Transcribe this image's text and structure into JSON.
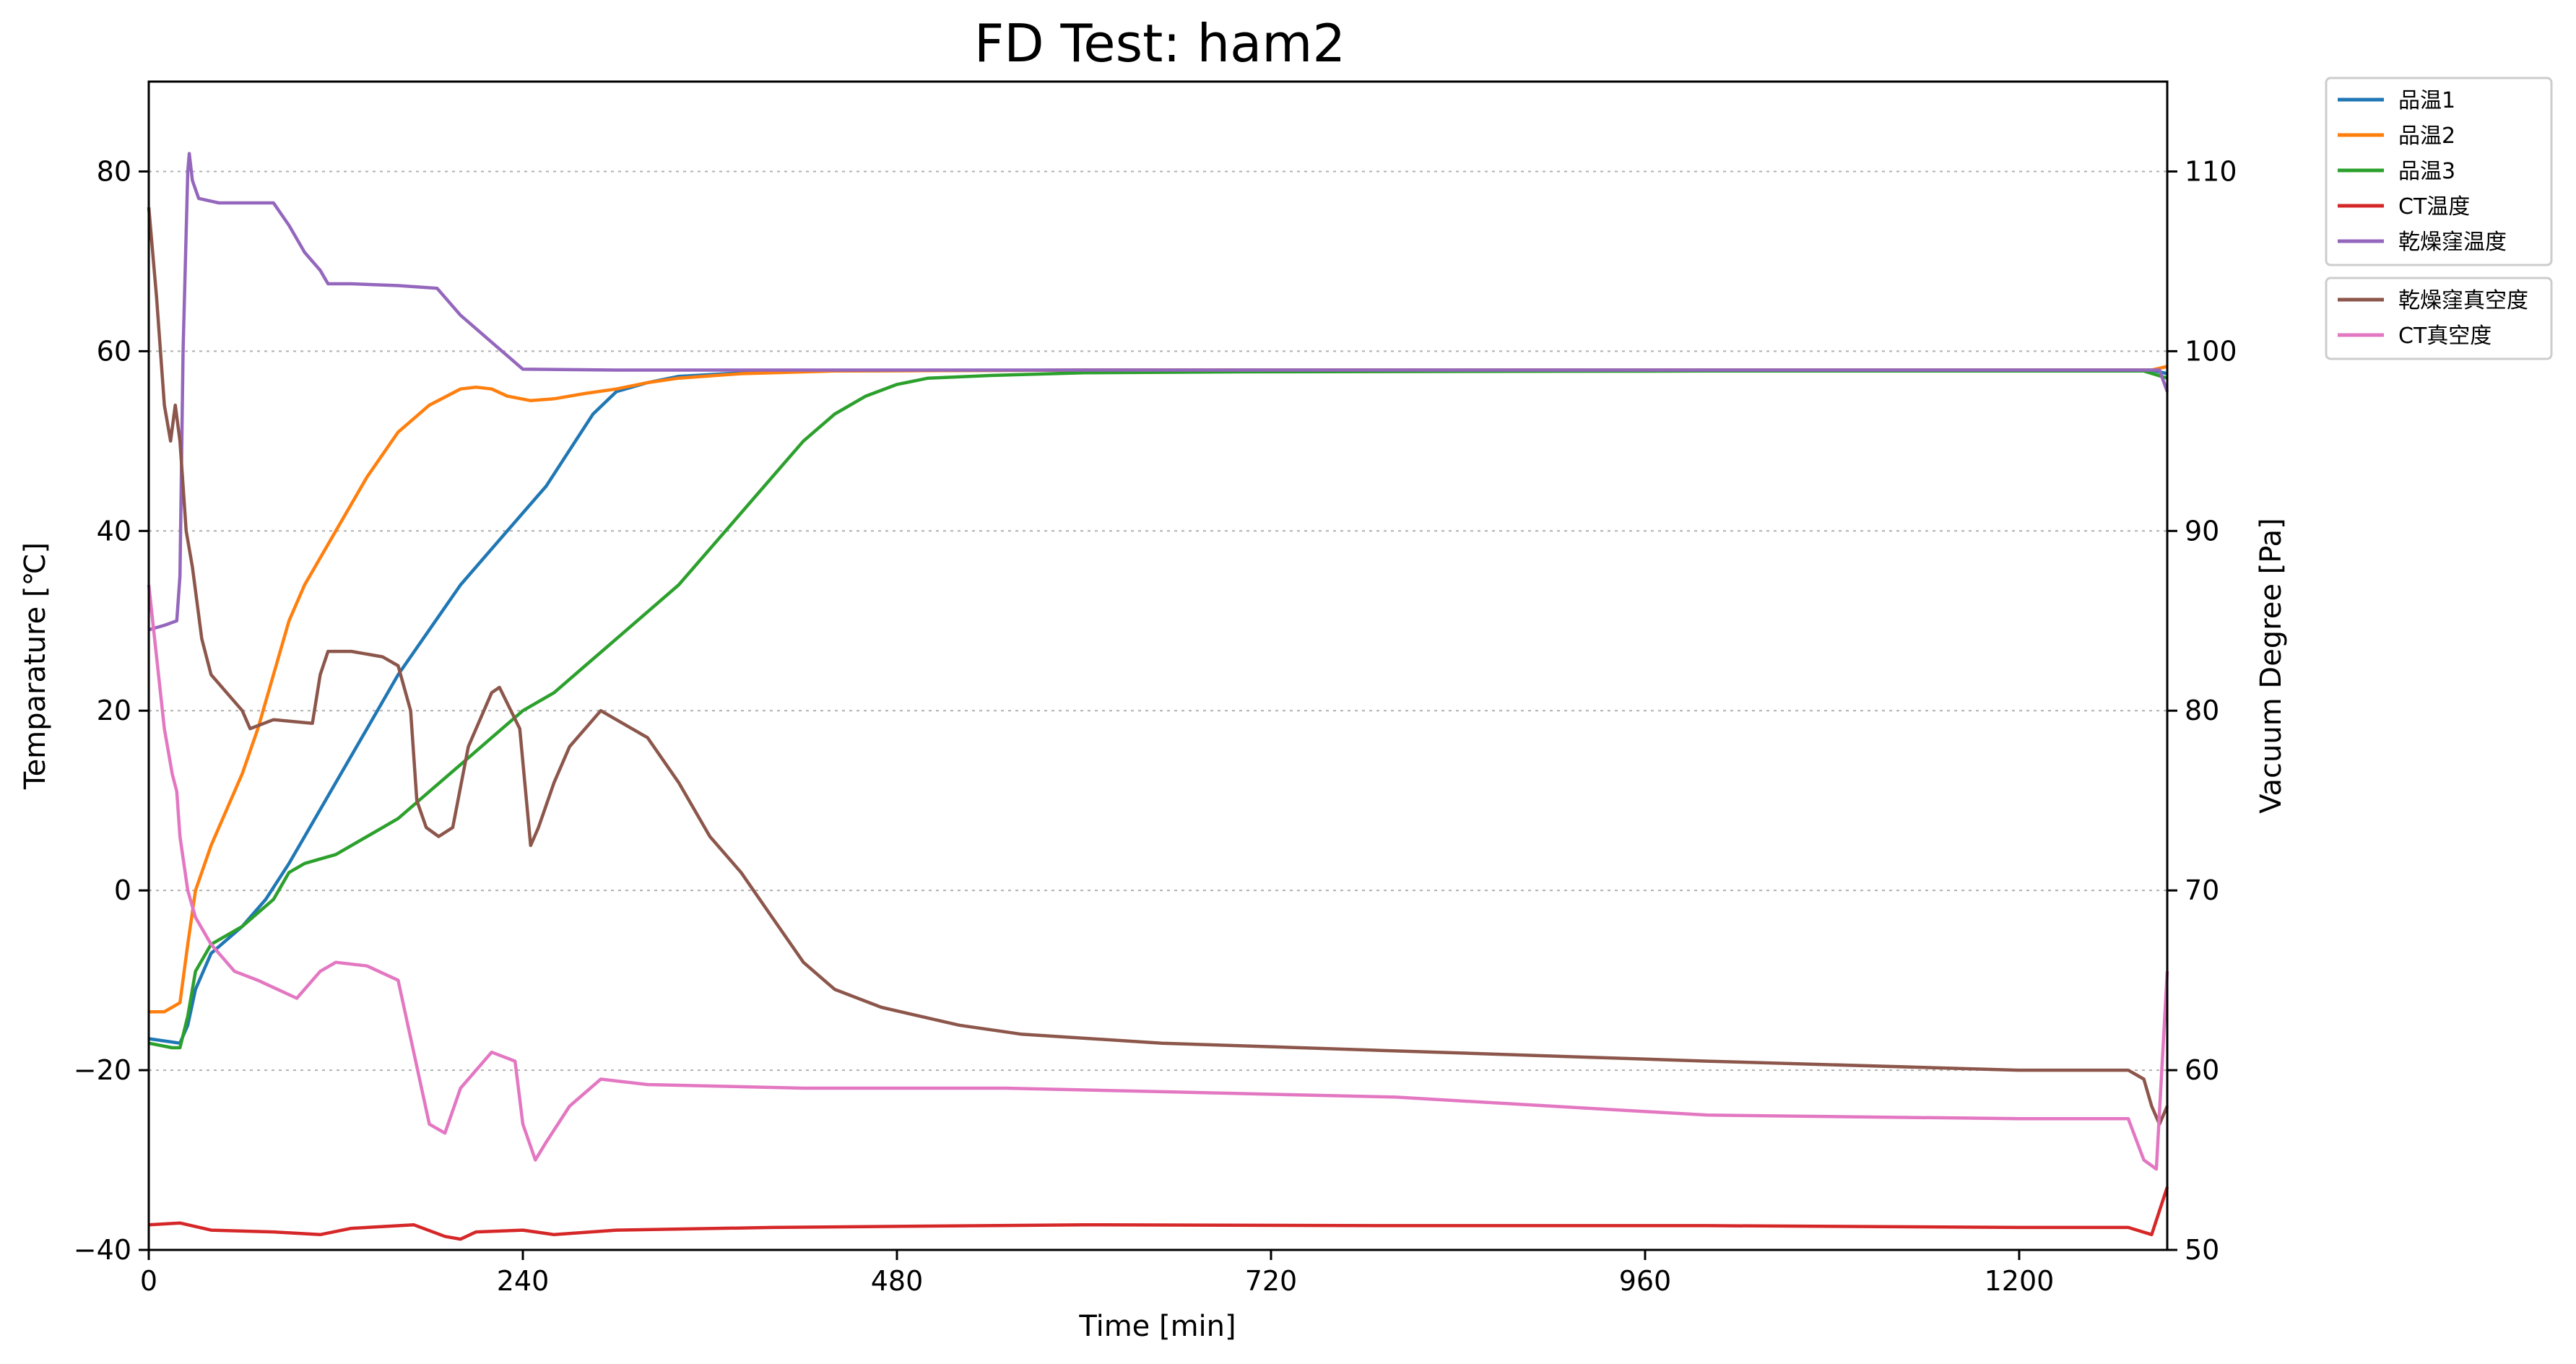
{
  "chart_data": {
    "type": "line",
    "title": "FD Test: ham2",
    "xlabel": "Time [min]",
    "ylabel": "Temparature [℃]",
    "y2label": "Vacuum Degree [Pa]",
    "xlim": [
      0,
      1295
    ],
    "ylim": [
      -40,
      90
    ],
    "y2lim": [
      50,
      115
    ],
    "xticks": [
      0,
      240,
      480,
      720,
      960,
      1200
    ],
    "yticks": [
      -40,
      -20,
      0,
      20,
      40,
      60,
      80
    ],
    "y2ticks": [
      50,
      60,
      70,
      80,
      90,
      100,
      110
    ],
    "xtick_labels": [
      "0",
      "240",
      "480",
      "720",
      "960",
      "1200"
    ],
    "ytick_labels": [
      "−40",
      "−20",
      "0",
      "20",
      "40",
      "60",
      "80"
    ],
    "y2tick_labels": [
      "50",
      "60",
      "70",
      "80",
      "90",
      "100",
      "110"
    ],
    "grid": "horizontal dotted",
    "legend_placement": "outside right, upper",
    "series": [
      {
        "name": "品温1",
        "axis": "left",
        "color": "#1f77b4",
        "points": [
          [
            0,
            -16.5
          ],
          [
            20,
            -17
          ],
          [
            25,
            -15
          ],
          [
            30,
            -11
          ],
          [
            40,
            -7
          ],
          [
            60,
            -4
          ],
          [
            75,
            -1
          ],
          [
            90,
            3
          ],
          [
            100,
            6
          ],
          [
            110,
            9
          ],
          [
            120,
            12
          ],
          [
            140,
            18
          ],
          [
            160,
            24
          ],
          [
            180,
            29
          ],
          [
            200,
            34
          ],
          [
            220,
            38
          ],
          [
            240,
            42
          ],
          [
            255,
            45
          ],
          [
            270,
            49
          ],
          [
            285,
            53
          ],
          [
            300,
            55.5
          ],
          [
            320,
            56.5
          ],
          [
            340,
            57.2
          ],
          [
            380,
            57.6
          ],
          [
            420,
            57.8
          ],
          [
            600,
            57.9
          ],
          [
            1000,
            57.9
          ],
          [
            1285,
            57.9
          ],
          [
            1295,
            57.5
          ]
        ]
      },
      {
        "name": "品温2",
        "axis": "left",
        "color": "#ff7f0e",
        "points": [
          [
            0,
            -13.5
          ],
          [
            10,
            -13.5
          ],
          [
            20,
            -12.5
          ],
          [
            25,
            -6
          ],
          [
            30,
            0
          ],
          [
            40,
            5
          ],
          [
            50,
            9
          ],
          [
            60,
            13
          ],
          [
            70,
            18
          ],
          [
            80,
            24
          ],
          [
            90,
            30
          ],
          [
            100,
            34
          ],
          [
            110,
            37
          ],
          [
            120,
            40
          ],
          [
            140,
            46
          ],
          [
            160,
            51
          ],
          [
            180,
            54
          ],
          [
            200,
            55.8
          ],
          [
            210,
            56
          ],
          [
            220,
            55.8
          ],
          [
            230,
            55
          ],
          [
            245,
            54.5
          ],
          [
            260,
            54.7
          ],
          [
            280,
            55.3
          ],
          [
            300,
            55.8
          ],
          [
            320,
            56.5
          ],
          [
            340,
            57
          ],
          [
            380,
            57.5
          ],
          [
            440,
            57.8
          ],
          [
            600,
            57.9
          ],
          [
            1285,
            57.9
          ],
          [
            1295,
            58.3
          ]
        ]
      },
      {
        "name": "品温3",
        "axis": "left",
        "color": "#2ca02c",
        "points": [
          [
            0,
            -17
          ],
          [
            15,
            -17.5
          ],
          [
            20,
            -17.5
          ],
          [
            25,
            -14
          ],
          [
            30,
            -9
          ],
          [
            40,
            -6
          ],
          [
            60,
            -4
          ],
          [
            80,
            -1
          ],
          [
            90,
            2
          ],
          [
            100,
            3
          ],
          [
            110,
            3.5
          ],
          [
            120,
            4
          ],
          [
            140,
            6
          ],
          [
            160,
            8
          ],
          [
            180,
            11
          ],
          [
            200,
            14
          ],
          [
            220,
            17
          ],
          [
            240,
            20
          ],
          [
            260,
            22
          ],
          [
            280,
            25
          ],
          [
            300,
            28
          ],
          [
            320,
            31
          ],
          [
            340,
            34
          ],
          [
            360,
            38
          ],
          [
            380,
            42
          ],
          [
            400,
            46
          ],
          [
            420,
            50
          ],
          [
            440,
            53
          ],
          [
            460,
            55
          ],
          [
            480,
            56.3
          ],
          [
            500,
            57
          ],
          [
            540,
            57.3
          ],
          [
            600,
            57.6
          ],
          [
            700,
            57.7
          ],
          [
            1000,
            57.8
          ],
          [
            1280,
            57.8
          ],
          [
            1295,
            57
          ]
        ]
      },
      {
        "name": "CT温度",
        "axis": "left",
        "color": "#d62728",
        "points": [
          [
            0,
            -37.2
          ],
          [
            20,
            -37
          ],
          [
            40,
            -37.8
          ],
          [
            80,
            -38
          ],
          [
            110,
            -38.3
          ],
          [
            130,
            -37.6
          ],
          [
            170,
            -37.2
          ],
          [
            190,
            -38.5
          ],
          [
            200,
            -38.8
          ],
          [
            210,
            -38
          ],
          [
            240,
            -37.8
          ],
          [
            260,
            -38.3
          ],
          [
            300,
            -37.8
          ],
          [
            400,
            -37.5
          ],
          [
            600,
            -37.2
          ],
          [
            800,
            -37.3
          ],
          [
            1000,
            -37.3
          ],
          [
            1200,
            -37.5
          ],
          [
            1270,
            -37.5
          ],
          [
            1285,
            -38.3
          ],
          [
            1295,
            -33
          ]
        ]
      },
      {
        "name": "乾燥窪温度",
        "axis": "left",
        "color": "#9467bd",
        "points": [
          [
            0,
            29
          ],
          [
            10,
            29.5
          ],
          [
            18,
            30
          ],
          [
            20,
            35
          ],
          [
            22,
            60
          ],
          [
            25,
            80
          ],
          [
            26,
            82
          ],
          [
            28,
            79
          ],
          [
            32,
            77
          ],
          [
            45,
            76.5
          ],
          [
            80,
            76.5
          ],
          [
            90,
            74
          ],
          [
            100,
            71
          ],
          [
            110,
            69
          ],
          [
            115,
            67.5
          ],
          [
            130,
            67.5
          ],
          [
            160,
            67.3
          ],
          [
            185,
            67
          ],
          [
            200,
            64
          ],
          [
            220,
            61
          ],
          [
            240,
            58
          ],
          [
            300,
            57.9
          ],
          [
            1290,
            57.9
          ],
          [
            1295,
            55.5
          ]
        ]
      },
      {
        "name": "乾燥窪真空度",
        "axis": "right",
        "color": "#8c564b",
        "points": [
          [
            0,
            108
          ],
          [
            5,
            103
          ],
          [
            10,
            97
          ],
          [
            14,
            95
          ],
          [
            17,
            97
          ],
          [
            20,
            95
          ],
          [
            24,
            90
          ],
          [
            28,
            88
          ],
          [
            34,
            84
          ],
          [
            40,
            82
          ],
          [
            50,
            81
          ],
          [
            60,
            80
          ],
          [
            65,
            79
          ],
          [
            80,
            79.5
          ],
          [
            105,
            79.3
          ],
          [
            110,
            82
          ],
          [
            115,
            83.3
          ],
          [
            130,
            83.3
          ],
          [
            150,
            83
          ],
          [
            160,
            82.5
          ],
          [
            168,
            80
          ],
          [
            172,
            75
          ],
          [
            178,
            73.5
          ],
          [
            186,
            73
          ],
          [
            195,
            73.5
          ],
          [
            205,
            78
          ],
          [
            220,
            81
          ],
          [
            225,
            81.3
          ],
          [
            238,
            79
          ],
          [
            245,
            72.5
          ],
          [
            250,
            73.5
          ],
          [
            260,
            76
          ],
          [
            270,
            78
          ],
          [
            280,
            79
          ],
          [
            290,
            80
          ],
          [
            300,
            79.5
          ],
          [
            320,
            78.5
          ],
          [
            340,
            76
          ],
          [
            360,
            73
          ],
          [
            380,
            71
          ],
          [
            400,
            68.5
          ],
          [
            420,
            66
          ],
          [
            440,
            64.5
          ],
          [
            470,
            63.5
          ],
          [
            520,
            62.5
          ],
          [
            560,
            62
          ],
          [
            650,
            61.5
          ],
          [
            1000,
            60.5
          ],
          [
            1200,
            60
          ],
          [
            1270,
            60
          ],
          [
            1280,
            59.5
          ],
          [
            1285,
            58
          ],
          [
            1290,
            57
          ],
          [
            1295,
            58
          ]
        ]
      },
      {
        "name": "CT真空度",
        "axis": "right",
        "color": "#e377c2",
        "points": [
          [
            0,
            87
          ],
          [
            5,
            83
          ],
          [
            10,
            79
          ],
          [
            15,
            76.5
          ],
          [
            18,
            75.5
          ],
          [
            20,
            73
          ],
          [
            25,
            70
          ],
          [
            30,
            68.5
          ],
          [
            40,
            67
          ],
          [
            55,
            65.5
          ],
          [
            70,
            65
          ],
          [
            95,
            64
          ],
          [
            110,
            65.5
          ],
          [
            120,
            66
          ],
          [
            140,
            65.8
          ],
          [
            160,
            65
          ],
          [
            180,
            57
          ],
          [
            190,
            56.5
          ],
          [
            200,
            59
          ],
          [
            220,
            61
          ],
          [
            235,
            60.5
          ],
          [
            240,
            57
          ],
          [
            248,
            55
          ],
          [
            255,
            56
          ],
          [
            270,
            58
          ],
          [
            290,
            59.5
          ],
          [
            320,
            59.2
          ],
          [
            420,
            59
          ],
          [
            550,
            59
          ],
          [
            650,
            58.8
          ],
          [
            800,
            58.5
          ],
          [
            900,
            58
          ],
          [
            1000,
            57.5
          ],
          [
            1200,
            57.3
          ],
          [
            1270,
            57.3
          ],
          [
            1280,
            55
          ],
          [
            1288,
            54.5
          ],
          [
            1295,
            65.5
          ]
        ]
      }
    ]
  }
}
